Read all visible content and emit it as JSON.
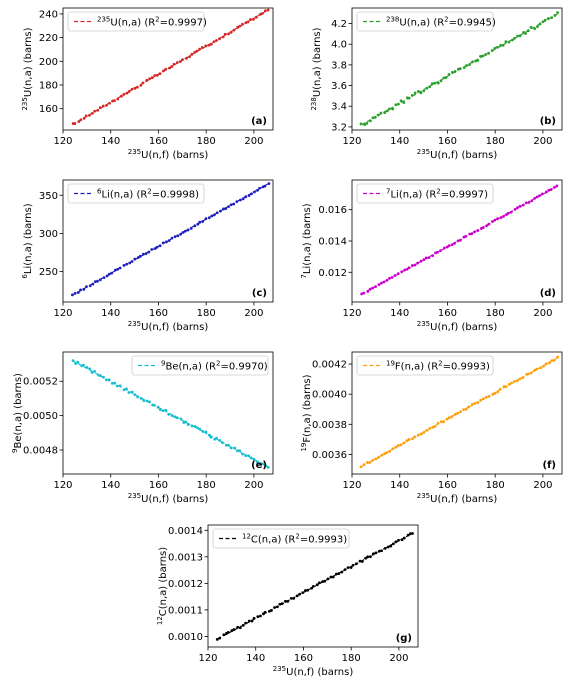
{
  "chart_data": [
    {
      "type": "scatter",
      "panel_label": "(a)",
      "xlabel_base": "U(n,f) (barns)",
      "xlabel_sup": "235",
      "ylabel_base": "U(n,a) (barns)",
      "ylabel_sup": "235",
      "legend": {
        "sup": "235",
        "text": "U(n,a) (R",
        "r2": "=0.9997)",
        "placement": "upper-left"
      },
      "color": "#d62728",
      "xlim": [
        120,
        208
      ],
      "ylim": [
        142,
        245
      ],
      "xticks": [
        {
          "v": 120,
          "label": "120"
        },
        {
          "v": 140,
          "label": "140"
        },
        {
          "v": 160,
          "label": "160"
        },
        {
          "v": 180,
          "label": "180"
        },
        {
          "v": 200,
          "label": "200"
        }
      ],
      "yticks": [
        {
          "v": 160,
          "label": "160"
        },
        {
          "v": 180,
          "label": "180"
        },
        {
          "v": 200,
          "label": "200"
        },
        {
          "v": 220,
          "label": "220"
        },
        {
          "v": 240,
          "label": "240"
        }
      ],
      "fit": {
        "x0": 124,
        "y0": 146.5,
        "x1": 206,
        "y1": 243.5
      },
      "noise": 0.8
    },
    {
      "type": "scatter",
      "panel_label": "(b)",
      "xlabel_base": "U(n,f) (barns)",
      "xlabel_sup": "235",
      "ylabel_base": "U(n,a) (barns)",
      "ylabel_sup": "238",
      "legend": {
        "sup": "238",
        "text": "U(n,a) (R",
        "r2": "=0.9945)",
        "placement": "upper-left"
      },
      "color": "#2ca02c",
      "xlim": [
        120,
        208
      ],
      "ylim": [
        3.17,
        4.35
      ],
      "xticks": [
        {
          "v": 120,
          "label": "120"
        },
        {
          "v": 140,
          "label": "140"
        },
        {
          "v": 160,
          "label": "160"
        },
        {
          "v": 180,
          "label": "180"
        },
        {
          "v": 200,
          "label": "200"
        }
      ],
      "yticks": [
        {
          "v": 3.2,
          "label": "3.2"
        },
        {
          "v": 3.4,
          "label": "3.4"
        },
        {
          "v": 3.6,
          "label": "3.6"
        },
        {
          "v": 3.8,
          "label": "3.8"
        },
        {
          "v": 4.0,
          "label": "4.0"
        },
        {
          "v": 4.2,
          "label": "4.2"
        }
      ],
      "fit": {
        "x0": 124,
        "y0": 3.22,
        "x1": 206,
        "y1": 4.29
      },
      "noise": 0.018
    },
    {
      "type": "scatter",
      "panel_label": "(c)",
      "xlabel_base": "U(n,f) (barns)",
      "xlabel_sup": "235",
      "ylabel_base": "Li(n,a) (barns)",
      "ylabel_sup": "6",
      "legend": {
        "sup": "6",
        "text": "Li(n,a) (R",
        "r2": "=0.9998)",
        "placement": "upper-left"
      },
      "color": "#1f1fbf",
      "xlim": [
        120,
        208
      ],
      "ylim": [
        210,
        370
      ],
      "xticks": [
        {
          "v": 120,
          "label": "120"
        },
        {
          "v": 140,
          "label": "140"
        },
        {
          "v": 160,
          "label": "160"
        },
        {
          "v": 180,
          "label": "180"
        },
        {
          "v": 200,
          "label": "200"
        }
      ],
      "yticks": [
        {
          "v": 250,
          "label": "250"
        },
        {
          "v": 300,
          "label": "300"
        },
        {
          "v": 350,
          "label": "350"
        }
      ],
      "fit": {
        "x0": 124,
        "y0": 219,
        "x1": 206,
        "y1": 365
      },
      "noise": 1.0
    },
    {
      "type": "scatter",
      "panel_label": "(d)",
      "xlabel_base": "U(n,f) (barns)",
      "xlabel_sup": "235",
      "ylabel_base": "Li(n,a) (barns)",
      "ylabel_sup": "7",
      "legend": {
        "sup": "7",
        "text": "Li(n,a) (R",
        "r2": "=0.9997)",
        "placement": "upper-left"
      },
      "color": "#cc00cc",
      "xlim": [
        120,
        208
      ],
      "ylim": [
        0.0101,
        0.0179
      ],
      "xticks": [
        {
          "v": 120,
          "label": "120"
        },
        {
          "v": 140,
          "label": "140"
        },
        {
          "v": 160,
          "label": "160"
        },
        {
          "v": 180,
          "label": "180"
        },
        {
          "v": 200,
          "label": "200"
        }
      ],
      "yticks": [
        {
          "v": 0.012,
          "label": "0.012"
        },
        {
          "v": 0.014,
          "label": "0.014"
        },
        {
          "v": 0.016,
          "label": "0.016"
        }
      ],
      "fit": {
        "x0": 124,
        "y0": 0.0106,
        "x1": 206,
        "y1": 0.0175
      },
      "noise": 4e-05
    },
    {
      "type": "scatter",
      "panel_label": "(e)",
      "xlabel_base": "U(n,f) (barns)",
      "xlabel_sup": "235",
      "ylabel_base": "Be(n,a) (barns)",
      "ylabel_sup": "9",
      "legend": {
        "sup": "9",
        "text": "Be(n,a) (R",
        "r2": "=0.9970)",
        "placement": "upper-right"
      },
      "color": "#17becf",
      "xlim": [
        120,
        208
      ],
      "ylim": [
        0.00466,
        0.00537
      ],
      "xticks": [
        {
          "v": 120,
          "label": "120"
        },
        {
          "v": 140,
          "label": "140"
        },
        {
          "v": 160,
          "label": "160"
        },
        {
          "v": 180,
          "label": "180"
        },
        {
          "v": 200,
          "label": "200"
        }
      ],
      "yticks": [
        {
          "v": 0.0048,
          "label": "0.0048"
        },
        {
          "v": 0.005,
          "label": "0.0050"
        },
        {
          "v": 0.0052,
          "label": "0.0052"
        }
      ],
      "fit": {
        "x0": 124,
        "y0": 0.00532,
        "x1": 206,
        "y1": 0.0047
      },
      "noise": 8e-06
    },
    {
      "type": "scatter",
      "panel_label": "(f)",
      "xlabel_base": "U(n,f) (barns)",
      "xlabel_sup": "235",
      "ylabel_base": "F(n,a) (barns)",
      "ylabel_sup": "19",
      "legend": {
        "sup": "19",
        "text": "F(n,a) (R",
        "r2": "=0.9993)",
        "placement": "upper-left"
      },
      "color": "#ff9f0e",
      "xlim": [
        120,
        208
      ],
      "ylim": [
        0.00347,
        0.00428
      ],
      "xticks": [
        {
          "v": 120,
          "label": "120"
        },
        {
          "v": 140,
          "label": "140"
        },
        {
          "v": 160,
          "label": "160"
        },
        {
          "v": 180,
          "label": "180"
        },
        {
          "v": 200,
          "label": "200"
        }
      ],
      "yticks": [
        {
          "v": 0.0036,
          "label": "0.0036"
        },
        {
          "v": 0.0038,
          "label": "0.0038"
        },
        {
          "v": 0.004,
          "label": "0.0040"
        },
        {
          "v": 0.0042,
          "label": "0.0042"
        }
      ],
      "fit": {
        "x0": 124,
        "y0": 0.00352,
        "x1": 206,
        "y1": 0.00424
      },
      "noise": 6e-06
    },
    {
      "type": "scatter",
      "panel_label": "(g)",
      "xlabel_base": "U(n,f) (barns)",
      "xlabel_sup": "235",
      "ylabel_base": "C(n,a) (barns)",
      "ylabel_sup": "12",
      "legend": {
        "sup": "12",
        "text": "C(n,a) (R",
        "r2": "=0.9993)",
        "placement": "upper-left"
      },
      "color": "#000000",
      "xlim": [
        120,
        208
      ],
      "ylim": [
        0.00096,
        0.00142
      ],
      "xticks": [
        {
          "v": 120,
          "label": "120"
        },
        {
          "v": 140,
          "label": "140"
        },
        {
          "v": 160,
          "label": "160"
        },
        {
          "v": 180,
          "label": "180"
        },
        {
          "v": 200,
          "label": "200"
        }
      ],
      "yticks": [
        {
          "v": 0.001,
          "label": "0.0010"
        },
        {
          "v": 0.0011,
          "label": "0.0011"
        },
        {
          "v": 0.0012,
          "label": "0.0012"
        },
        {
          "v": 0.0013,
          "label": "0.0013"
        },
        {
          "v": 0.0014,
          "label": "0.0014"
        }
      ],
      "fit": {
        "x0": 124,
        "y0": 0.00099,
        "x1": 206,
        "y1": 0.00139
      },
      "noise": 4e-06
    }
  ]
}
